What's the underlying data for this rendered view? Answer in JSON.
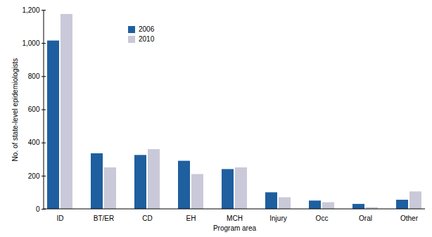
{
  "chart_data": {
    "type": "bar",
    "x_label": "Program area",
    "y_label": "No. of state-level epidemiologists",
    "categories": [
      "ID",
      "BT/ER",
      "CD",
      "EH",
      "MCH",
      "Injury",
      "Occ",
      "Oral",
      "Other"
    ],
    "series": [
      {
        "name": "2006",
        "color": "#1f5f9f",
        "values": [
          1015,
          335,
          325,
          290,
          240,
          100,
          50,
          30,
          55
        ]
      },
      {
        "name": "2010",
        "color": "#c9c9d9",
        "values": [
          1175,
          250,
          360,
          210,
          250,
          70,
          40,
          10,
          105
        ]
      }
    ],
    "ylim": [
      0,
      1200
    ],
    "yticks": [
      0,
      200,
      400,
      600,
      800,
      {
        "value": 1000,
        "label": "1,000"
      },
      {
        "value": 1200,
        "label": "1,200"
      }
    ],
    "grid": false,
    "legend": "upper left"
  }
}
